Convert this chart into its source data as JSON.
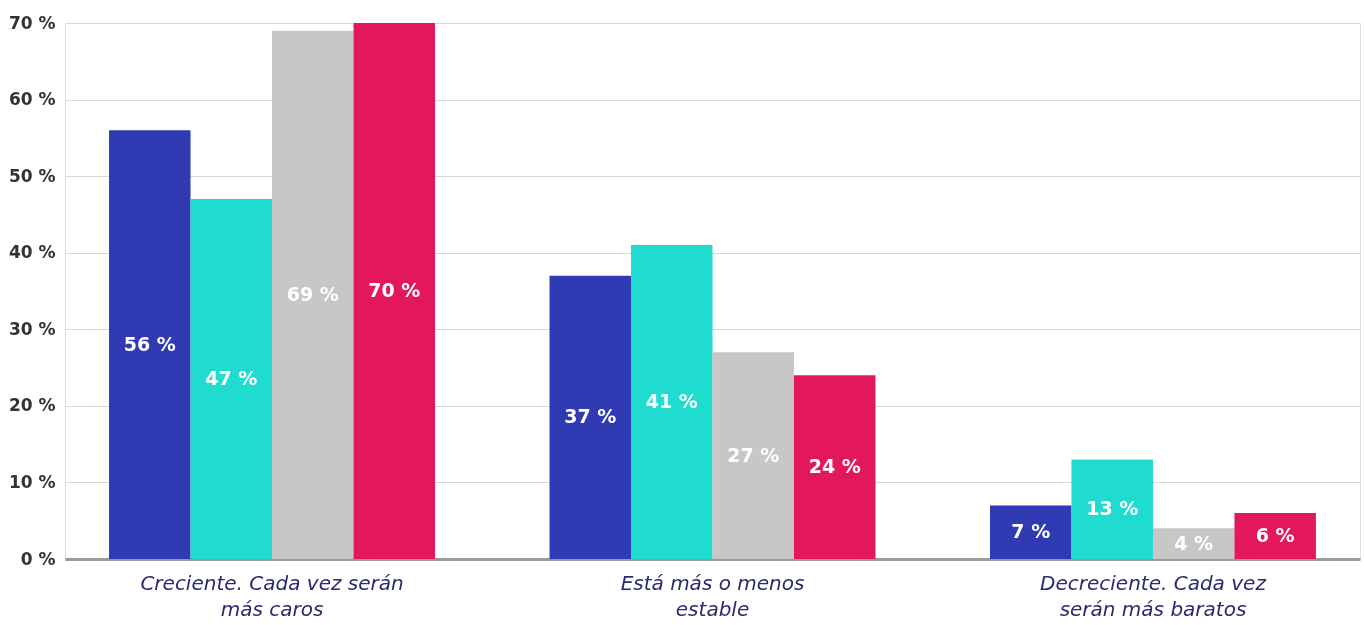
{
  "chart_data": {
    "type": "bar",
    "categories": [
      "Creciente. Cada vez serán\nmás caros",
      "Está más o menos\nestable",
      "Decreciente. Cada vez\nserán más baratos"
    ],
    "series": [
      {
        "color": "#303ab2",
        "values": [
          56,
          37,
          7
        ],
        "value_labels": [
          "56 %",
          "37 %",
          "7 %"
        ]
      },
      {
        "color": "#1fdbd0",
        "values": [
          47,
          41,
          13
        ],
        "value_labels": [
          "47 %",
          "41 %",
          "13 %"
        ]
      },
      {
        "color": "#c8c7c5",
        "values": [
          69,
          27,
          4
        ],
        "value_labels": [
          "69 %",
          "27 %",
          "4 %"
        ]
      },
      {
        "color": "#e3185b",
        "values": [
          70,
          24,
          6
        ],
        "value_labels": [
          "70 %",
          "24 %",
          "6 %"
        ]
      }
    ],
    "ylim": [
      0,
      70
    ],
    "yticks": [
      {
        "value": 0,
        "label": "0 %"
      },
      {
        "value": 10,
        "label": "10 %"
      },
      {
        "value": 20,
        "label": "20 %"
      },
      {
        "value": 30,
        "label": "30 %"
      },
      {
        "value": 40,
        "label": "40 %"
      },
      {
        "value": 50,
        "label": "50 %"
      },
      {
        "value": 60,
        "label": "60 %"
      },
      {
        "value": 70,
        "label": "70 %"
      }
    ],
    "grid": "y",
    "legend": false
  }
}
